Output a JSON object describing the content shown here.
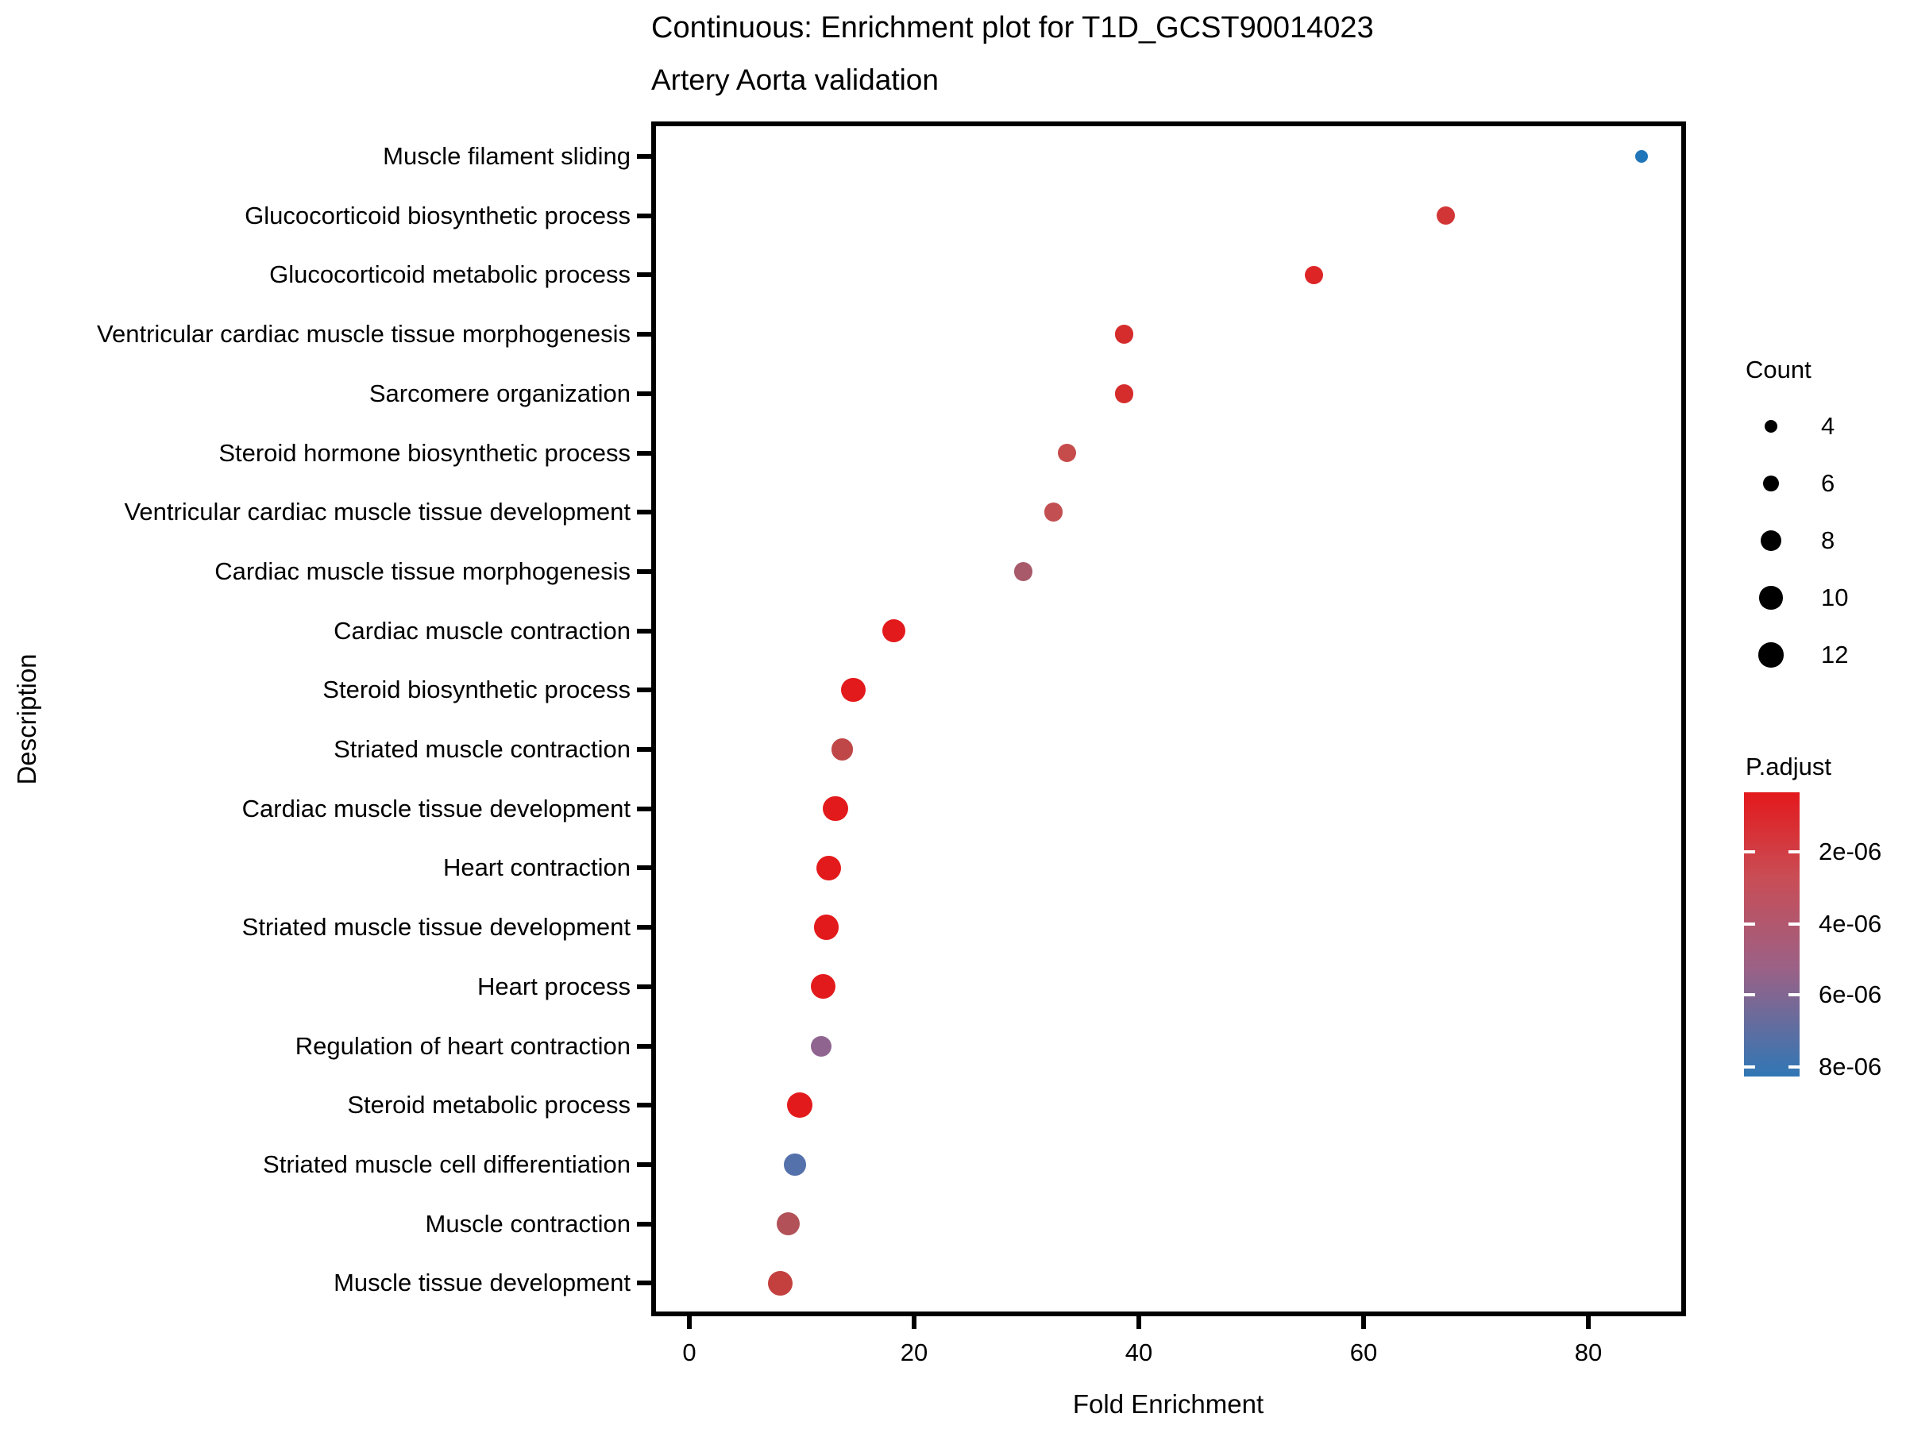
{
  "title": "Continuous: Enrichment plot for T1D_GCST90014023",
  "subtitle": "Artery Aorta validation",
  "chart_data": {
    "type": "scatter",
    "title": "Continuous: Enrichment plot for T1D_GCST90014023",
    "subtitle": "Artery Aorta validation",
    "xlabel": "Fold Enrichment",
    "ylabel": "Description",
    "xlim": [
      -3.4,
      88.7
    ],
    "x_ticks": [
      0,
      20,
      40,
      60,
      80
    ],
    "grid": false,
    "points": [
      {
        "label": "Muscle filament sliding",
        "fold_enrichment": 84.7,
        "count": 4,
        "p_adjust": 8.6e-06,
        "color": "#2176B9"
      },
      {
        "label": "Glucocorticoid biosynthetic process",
        "fold_enrichment": 67.3,
        "count": 7,
        "p_adjust": 1.5e-06,
        "color": "#D23535"
      },
      {
        "label": "Glucocorticoid metabolic process",
        "fold_enrichment": 55.6,
        "count": 7,
        "p_adjust": 9e-07,
        "color": "#DE2526"
      },
      {
        "label": "Ventricular cardiac muscle tissue morphogenesis",
        "fold_enrichment": 38.7,
        "count": 7,
        "p_adjust": 1.2e-06,
        "color": "#D52C2C"
      },
      {
        "label": "Sarcomere organization",
        "fold_enrichment": 38.7,
        "count": 7,
        "p_adjust": 1.2e-06,
        "color": "#D52C2C"
      },
      {
        "label": "Steroid hormone biosynthetic process",
        "fold_enrichment": 33.6,
        "count": 7,
        "p_adjust": 2.4e-06,
        "color": "#C64B4B"
      },
      {
        "label": "Ventricular cardiac muscle tissue development",
        "fold_enrichment": 32.4,
        "count": 7,
        "p_adjust": 2.6e-06,
        "color": "#C24F52"
      },
      {
        "label": "Cardiac muscle tissue morphogenesis",
        "fold_enrichment": 29.7,
        "count": 7,
        "p_adjust": 4.2e-06,
        "color": "#A85A6A"
      },
      {
        "label": "Cardiac muscle contraction",
        "fold_enrichment": 18.2,
        "count": 10,
        "p_adjust": 5e-07,
        "color": "#E31A1C"
      },
      {
        "label": "Steroid biosynthetic process",
        "fold_enrichment": 14.6,
        "count": 11,
        "p_adjust": 4e-07,
        "color": "#E31A1C"
      },
      {
        "label": "Striated muscle contraction",
        "fold_enrichment": 13.6,
        "count": 9,
        "p_adjust": 2.8e-06,
        "color": "#BF4747"
      },
      {
        "label": "Cardiac muscle tissue development",
        "fold_enrichment": 13.0,
        "count": 12,
        "p_adjust": 3e-07,
        "color": "#E31A1C"
      },
      {
        "label": "Heart contraction",
        "fold_enrichment": 12.4,
        "count": 12,
        "p_adjust": 3e-07,
        "color": "#E31A1C"
      },
      {
        "label": "Striated muscle tissue development",
        "fold_enrichment": 12.2,
        "count": 12,
        "p_adjust": 3e-07,
        "color": "#E31A1C"
      },
      {
        "label": "Heart process",
        "fold_enrichment": 11.9,
        "count": 12,
        "p_adjust": 3e-07,
        "color": "#E31A1C"
      },
      {
        "label": "Regulation of heart contraction",
        "fold_enrichment": 11.7,
        "count": 8,
        "p_adjust": 5.6e-06,
        "color": "#8F6590"
      },
      {
        "label": "Steroid metabolic process",
        "fold_enrichment": 9.8,
        "count": 13,
        "p_adjust": 3e-07,
        "color": "#E31A1C"
      },
      {
        "label": "Striated muscle cell differentiation",
        "fold_enrichment": 9.4,
        "count": 9,
        "p_adjust": 7.6e-06,
        "color": "#5571AC"
      },
      {
        "label": "Muscle contraction",
        "fold_enrichment": 8.8,
        "count": 10,
        "p_adjust": 3.4e-06,
        "color": "#B25158"
      },
      {
        "label": "Muscle tissue development",
        "fold_enrichment": 8.1,
        "count": 12,
        "p_adjust": 2.2e-06,
        "color": "#C4403E"
      }
    ],
    "legend_count": {
      "title": "Count",
      "entries": [
        4,
        6,
        8,
        10,
        12
      ]
    },
    "legend_padjust": {
      "title": "P.adjust",
      "ticks": [
        "2e-06",
        "4e-06",
        "6e-06",
        "8e-06"
      ],
      "gradient_top_color": "#E3191C",
      "gradient_bottom_color": "#3077B5"
    }
  }
}
